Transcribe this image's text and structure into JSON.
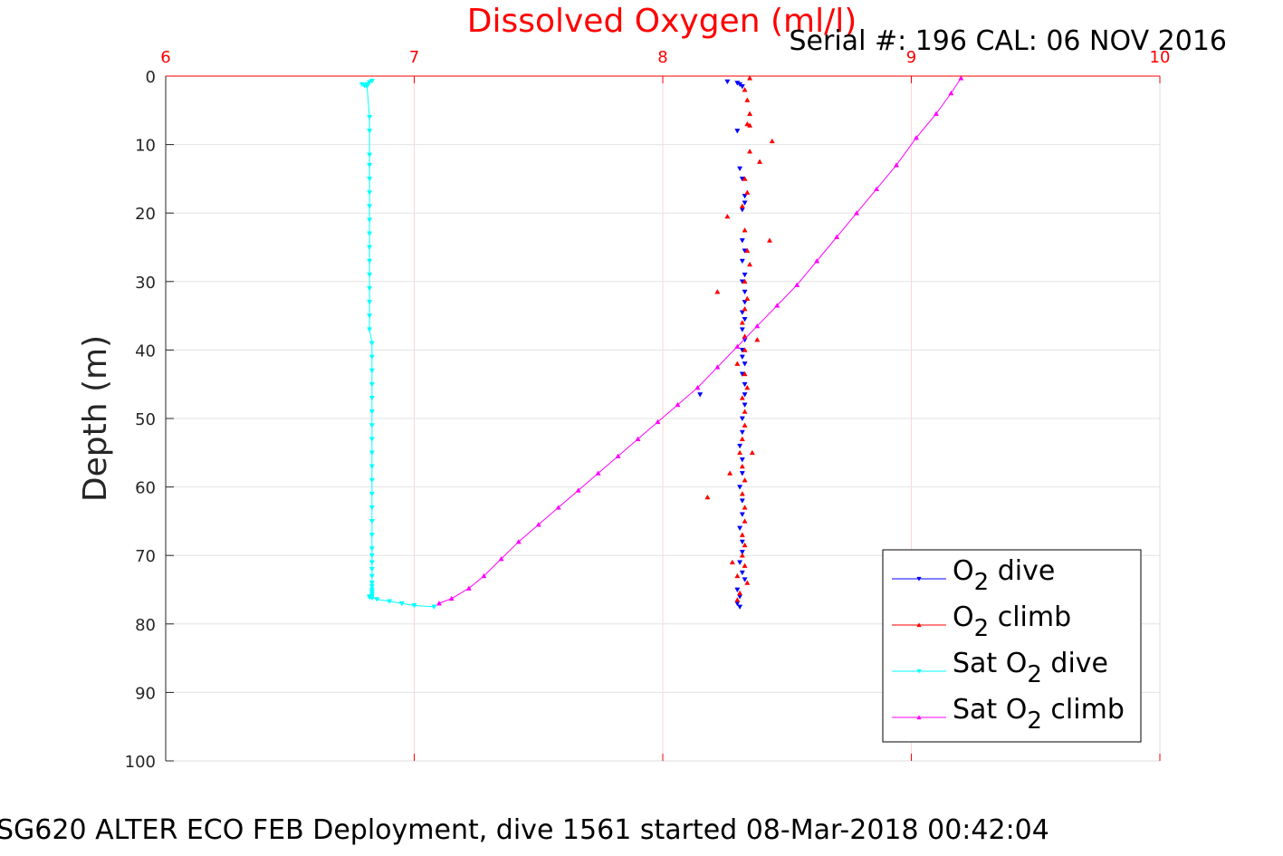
{
  "chart_data": {
    "type": "scatter",
    "title": "Dissolved Oxygen (ml/l)",
    "subtitle": "Serial #: 196  CAL: 06 NOV 2016",
    "xlabel": "",
    "ylabel": "Depth (m)",
    "footer": "SG620 ALTER ECO FEB Deployment, dive 1561 started 08-Mar-2018 00:42:04",
    "xlim": [
      6,
      10
    ],
    "ylim": [
      0,
      100
    ],
    "y_reversed": true,
    "x_axis_location": "top",
    "x_ticks": [
      "6",
      "7",
      "8",
      "9",
      "10"
    ],
    "y_ticks": [
      "0",
      "10",
      "20",
      "30",
      "40",
      "50",
      "60",
      "70",
      "80",
      "90",
      "100"
    ],
    "grid": true,
    "legend_position": "bottom-right",
    "series": [
      {
        "name": "O2 dive",
        "legend_label": {
          "base": "O",
          "sub": "2",
          "rest": " dive"
        },
        "color": "#0000ff",
        "marker": "triangle-down",
        "connected": false,
        "x": [
          8.26,
          8.3,
          8.32,
          8.31,
          8.3,
          8.31,
          8.32,
          8.33,
          8.33,
          8.32,
          8.32,
          8.33,
          8.32,
          8.33,
          8.32,
          8.33,
          8.33,
          8.32,
          8.33,
          8.32,
          8.33,
          8.32,
          8.32,
          8.33,
          8.32,
          8.33,
          8.33,
          8.15,
          8.33,
          8.32,
          8.32,
          8.31,
          8.32,
          8.32,
          8.31,
          8.32,
          8.32,
          8.31,
          8.32,
          8.32,
          8.31,
          8.32,
          8.33,
          8.3,
          8.31,
          8.3,
          8.31
        ],
        "y": [
          0.8,
          1.0,
          1.5,
          1.2,
          8.0,
          13.5,
          15.0,
          17.5,
          18.5,
          19.5,
          24.0,
          25.5,
          27.0,
          29.0,
          30.0,
          31.5,
          33.0,
          34.5,
          35.5,
          37.0,
          38.5,
          40.0,
          41.0,
          42.0,
          43.5,
          45.0,
          46.5,
          46.5,
          48.0,
          50.0,
          52.0,
          54.0,
          56.0,
          58.0,
          60.0,
          62.0,
          64.0,
          66.0,
          68.0,
          69.5,
          71.0,
          72.5,
          73.5,
          75.0,
          76.0,
          77.0,
          77.5
        ]
      },
      {
        "name": "O2 climb",
        "legend_label": {
          "base": "O",
          "sub": "2",
          "rest": " climb"
        },
        "color": "#ff0000",
        "marker": "triangle-up",
        "connected": false,
        "x": [
          8.35,
          8.33,
          8.34,
          8.35,
          8.34,
          8.35,
          8.44,
          8.35,
          8.39,
          8.33,
          8.34,
          8.32,
          8.26,
          8.33,
          8.43,
          8.34,
          8.35,
          8.33,
          8.34,
          8.22,
          8.33,
          8.32,
          8.33,
          8.38,
          8.33,
          8.3,
          8.33,
          8.34,
          8.32,
          8.33,
          8.33,
          8.32,
          8.31,
          8.36,
          8.32,
          8.33,
          8.27,
          8.32,
          8.33,
          8.18,
          8.33,
          8.32,
          8.33,
          8.32,
          8.33,
          8.28,
          8.3,
          8.34,
          8.31,
          8.3
        ],
        "y": [
          0.3,
          2.0,
          3.5,
          5.5,
          7.0,
          7.2,
          9.5,
          11.0,
          12.5,
          15.0,
          17.0,
          19.0,
          20.5,
          22.5,
          24.0,
          25.5,
          27.5,
          30.0,
          32.5,
          31.5,
          34.0,
          36.0,
          38.0,
          38.5,
          40.0,
          42.0,
          43.5,
          45.5,
          47.0,
          49.0,
          51.0,
          53.0,
          55.0,
          55.0,
          57.0,
          59.0,
          58.0,
          61.0,
          63.0,
          61.5,
          65.0,
          67.0,
          68.5,
          70.0,
          71.5,
          71.0,
          73.0,
          74.0,
          75.5,
          76.5
        ]
      },
      {
        "name": "Sat O2 dive",
        "legend_label": {
          "base": "Sat O",
          "sub": "2",
          "rest": " dive"
        },
        "color": "#00ffff",
        "marker": "triangle-down",
        "connected": true,
        "x": [
          6.83,
          6.82,
          6.81,
          6.8,
          6.79,
          6.81,
          6.82,
          6.82,
          6.82,
          6.82,
          6.82,
          6.82,
          6.82,
          6.82,
          6.82,
          6.82,
          6.82,
          6.82,
          6.82,
          6.82,
          6.82,
          6.82,
          6.83,
          6.83,
          6.83,
          6.83,
          6.83,
          6.83,
          6.83,
          6.83,
          6.83,
          6.83,
          6.83,
          6.83,
          6.83,
          6.83,
          6.83,
          6.83,
          6.83,
          6.83,
          6.83,
          6.83,
          6.83,
          6.83,
          6.83,
          6.83,
          6.83,
          6.83,
          6.82,
          6.82,
          6.83,
          6.85,
          6.9,
          6.95,
          7.0,
          7.08
        ],
        "y": [
          0.7,
          0.9,
          1.2,
          1.4,
          1.2,
          1.5,
          6.0,
          8.0,
          11.5,
          13.0,
          15.0,
          17.0,
          19.0,
          21.0,
          23.0,
          25.0,
          27.0,
          29.0,
          31.0,
          33.0,
          35.0,
          37.0,
          39.0,
          41.0,
          43.0,
          45.0,
          47.0,
          49.0,
          51.0,
          53.0,
          55.0,
          57.0,
          59.0,
          61.0,
          63.0,
          65.0,
          67.0,
          69.0,
          70.0,
          71.0,
          72.0,
          73.0,
          74.0,
          74.5,
          75.0,
          75.3,
          75.6,
          75.9,
          76.0,
          76.1,
          76.2,
          76.4,
          76.7,
          77.0,
          77.3,
          77.5
        ]
      },
      {
        "name": "Sat O2 climb",
        "legend_label": {
          "base": "Sat O",
          "sub": "2",
          "rest": " climb"
        },
        "color": "#ff00ff",
        "marker": "triangle-up",
        "connected": true,
        "x": [
          7.1,
          7.15,
          7.22,
          7.28,
          7.35,
          7.42,
          7.5,
          7.58,
          7.66,
          7.74,
          7.82,
          7.9,
          7.98,
          8.06,
          8.14,
          8.22,
          8.3,
          8.38,
          8.46,
          8.54,
          8.62,
          8.7,
          8.78,
          8.86,
          8.94,
          9.02,
          9.1,
          9.16,
          9.2
        ],
        "y": [
          77.0,
          76.3,
          74.8,
          73.0,
          70.5,
          68.0,
          65.5,
          63.0,
          60.5,
          58.0,
          55.5,
          53.0,
          50.5,
          48.0,
          45.5,
          42.5,
          39.5,
          36.5,
          33.5,
          30.5,
          27.0,
          23.5,
          20.0,
          16.5,
          13.0,
          9.0,
          5.5,
          2.5,
          0.3
        ]
      }
    ]
  }
}
